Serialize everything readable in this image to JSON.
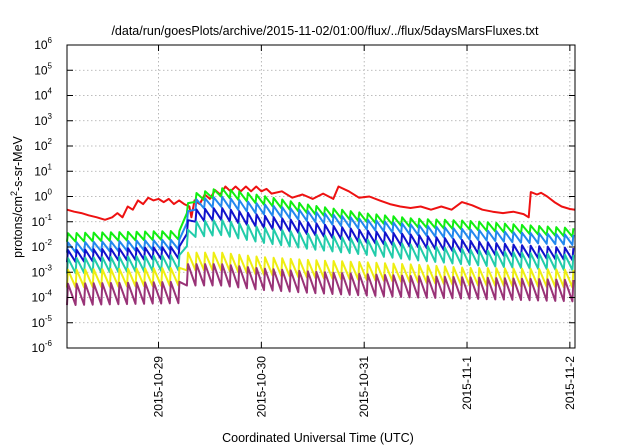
{
  "chart_data": {
    "type": "line",
    "title": "/data/run/goesPlots/archive/2015-11-02/01:00/flux/../flux/5daysMarsFluxes.txt",
    "xlabel": "Coordinated Universal Time (UTC)",
    "ylabel_parts": {
      "pre": "protons/cm",
      "sup": "2",
      "post": "-s-sr-MeV"
    },
    "yscale": "log",
    "ylim": [
      1e-06,
      1000000.0
    ],
    "xlim_days": [
      -0.89,
      4.05
    ],
    "grid": true,
    "legend": "none",
    "x_ticks": [
      {
        "label": "2015-10-29",
        "day": 0
      },
      {
        "label": "2015-10-30",
        "day": 1
      },
      {
        "label": "2015-10-31",
        "day": 2
      },
      {
        "label": "2015-11-1",
        "day": 3
      },
      {
        "label": "2015-11-2",
        "day": 4
      }
    ],
    "y_ticks": [
      {
        "base": "10",
        "exp": "-6",
        "value": 1e-06
      },
      {
        "base": "10",
        "exp": "-5",
        "value": 1e-05
      },
      {
        "base": "10",
        "exp": "-4",
        "value": 0.0001
      },
      {
        "base": "10",
        "exp": "-3",
        "value": 0.001
      },
      {
        "base": "10",
        "exp": "-2",
        "value": 0.01
      },
      {
        "base": "10",
        "exp": "-1",
        "value": 0.1
      },
      {
        "base": "10",
        "exp": "0",
        "value": 1
      },
      {
        "base": "10",
        "exp": "1",
        "value": 10
      },
      {
        "base": "10",
        "exp": "2",
        "value": 100
      },
      {
        "base": "10",
        "exp": "3",
        "value": 1000
      },
      {
        "base": "10",
        "exp": "4",
        "value": 10000
      },
      {
        "base": "10",
        "exp": "5",
        "value": 100000
      },
      {
        "base": "10",
        "exp": "6",
        "value": 1000000
      }
    ],
    "series": [
      {
        "color": "#ee1111",
        "points": [
          [
            -0.89,
            0.3
          ],
          [
            -0.82,
            0.25
          ],
          [
            -0.75,
            0.22
          ],
          [
            -0.68,
            0.18
          ],
          [
            -0.6,
            0.15
          ],
          [
            -0.52,
            0.12
          ],
          [
            -0.45,
            0.15
          ],
          [
            -0.4,
            0.22
          ],
          [
            -0.35,
            0.15
          ],
          [
            -0.3,
            0.4
          ],
          [
            -0.25,
            0.3
          ],
          [
            -0.2,
            0.7
          ],
          [
            -0.15,
            0.5
          ],
          [
            -0.1,
            0.9
          ],
          [
            -0.05,
            0.7
          ],
          [
            0.0,
            0.8
          ],
          [
            0.05,
            0.6
          ],
          [
            0.1,
            0.8
          ],
          [
            0.15,
            0.5
          ],
          [
            0.2,
            0.7
          ],
          [
            0.25,
            0.5
          ],
          [
            0.3,
            0.4
          ],
          [
            0.32,
            0.15
          ],
          [
            0.35,
            0.7
          ],
          [
            0.4,
            0.5
          ],
          [
            0.45,
            1.2
          ],
          [
            0.5,
            0.8
          ],
          [
            0.55,
            1.8
          ],
          [
            0.6,
            1.2
          ],
          [
            0.65,
            2.5
          ],
          [
            0.7,
            1.6
          ],
          [
            0.75,
            2.5
          ],
          [
            0.8,
            1.6
          ],
          [
            0.85,
            2.5
          ],
          [
            0.9,
            1.6
          ],
          [
            0.95,
            2.5
          ],
          [
            1.0,
            1.6
          ],
          [
            1.05,
            2.0
          ],
          [
            1.1,
            1.3
          ],
          [
            1.2,
            1.6
          ],
          [
            1.3,
            0.9
          ],
          [
            1.4,
            1.2
          ],
          [
            1.5,
            0.8
          ],
          [
            1.6,
            1.3
          ],
          [
            1.7,
            0.8
          ],
          [
            1.75,
            2.5
          ],
          [
            1.85,
            1.6
          ],
          [
            1.95,
            0.9
          ],
          [
            2.05,
            1.0
          ],
          [
            2.15,
            0.7
          ],
          [
            2.25,
            0.5
          ],
          [
            2.35,
            0.4
          ],
          [
            2.45,
            0.35
          ],
          [
            2.55,
            0.4
          ],
          [
            2.65,
            0.3
          ],
          [
            2.75,
            0.4
          ],
          [
            2.85,
            0.3
          ],
          [
            2.95,
            0.6
          ],
          [
            3.05,
            0.45
          ],
          [
            3.15,
            0.3
          ],
          [
            3.25,
            0.25
          ],
          [
            3.35,
            0.22
          ],
          [
            3.45,
            0.25
          ],
          [
            3.55,
            0.2
          ],
          [
            3.6,
            0.15
          ],
          [
            3.62,
            1.5
          ],
          [
            3.68,
            1.2
          ],
          [
            3.72,
            1.4
          ],
          [
            3.78,
            1.0
          ],
          [
            3.85,
            0.6
          ],
          [
            3.92,
            0.4
          ],
          [
            4.0,
            0.32
          ],
          [
            4.05,
            0.3
          ]
        ]
      },
      {
        "color": "#11ee11",
        "base": [
          [
            -0.89,
            0.016
          ],
          [
            0.22,
            0.02
          ],
          [
            0.27,
            0.2
          ],
          [
            0.35,
            0.6
          ],
          [
            0.6,
            1.0
          ],
          [
            1.0,
            0.5
          ],
          [
            1.5,
            0.2
          ],
          [
            2.0,
            0.1
          ],
          [
            2.5,
            0.06
          ],
          [
            3.0,
            0.05
          ],
          [
            3.5,
            0.035
          ],
          [
            4.05,
            0.025
          ]
        ],
        "amp": 2.2
      },
      {
        "color": "#2288ee",
        "base": [
          [
            -0.89,
            0.006
          ],
          [
            0.22,
            0.008
          ],
          [
            0.27,
            0.08
          ],
          [
            0.35,
            0.3
          ],
          [
            0.6,
            0.4
          ],
          [
            1.0,
            0.2
          ],
          [
            1.5,
            0.1
          ],
          [
            2.0,
            0.05
          ],
          [
            2.5,
            0.03
          ],
          [
            3.0,
            0.02
          ],
          [
            3.5,
            0.015
          ],
          [
            4.05,
            0.012
          ]
        ],
        "amp": 2.5
      },
      {
        "color": "#1111cc",
        "base": [
          [
            -0.89,
            0.0025
          ],
          [
            0.22,
            0.0035
          ],
          [
            0.27,
            0.03
          ],
          [
            0.35,
            0.1
          ],
          [
            0.6,
            0.12
          ],
          [
            1.0,
            0.06
          ],
          [
            1.5,
            0.03
          ],
          [
            2.0,
            0.015
          ],
          [
            2.5,
            0.01
          ],
          [
            3.0,
            0.006
          ],
          [
            3.5,
            0.004
          ],
          [
            4.05,
            0.003
          ]
        ],
        "amp": 3.0
      },
      {
        "color": "#22ccaa",
        "base": [
          [
            -0.89,
            0.0009
          ],
          [
            0.22,
            0.0012
          ],
          [
            0.27,
            0.01
          ],
          [
            0.35,
            0.025
          ],
          [
            0.6,
            0.03
          ],
          [
            1.0,
            0.015
          ],
          [
            1.5,
            0.008
          ],
          [
            2.0,
            0.005
          ],
          [
            2.5,
            0.003
          ],
          [
            3.0,
            0.002
          ],
          [
            3.5,
            0.0015
          ],
          [
            4.05,
            0.0012
          ]
        ],
        "amp": 4.0
      },
      {
        "color": "#eeee11",
        "base": [
          [
            -0.89,
            0.00025
          ],
          [
            0.22,
            0.0003
          ],
          [
            0.27,
            0.0012
          ],
          [
            0.6,
            0.0012
          ],
          [
            1.0,
            0.0008
          ],
          [
            1.5,
            0.0006
          ],
          [
            2.0,
            0.0005
          ],
          [
            2.5,
            0.0004
          ],
          [
            3.0,
            0.0003
          ],
          [
            3.5,
            0.00028
          ],
          [
            4.05,
            0.00025
          ]
        ],
        "amp": 5.0
      },
      {
        "color": "#993377",
        "base": [
          [
            -0.89,
            5e-05
          ],
          [
            0.22,
            6e-05
          ],
          [
            0.27,
            0.0003
          ],
          [
            0.6,
            0.0003
          ],
          [
            1.0,
            0.0002
          ],
          [
            1.5,
            0.00015
          ],
          [
            2.0,
            0.00012
          ],
          [
            2.5,
            0.0001
          ],
          [
            3.0,
            9e-05
          ],
          [
            3.5,
            8e-05
          ],
          [
            4.05,
            7e-05
          ]
        ],
        "amp": 7.0
      }
    ],
    "sawtooth_period_days": 0.0833
  }
}
